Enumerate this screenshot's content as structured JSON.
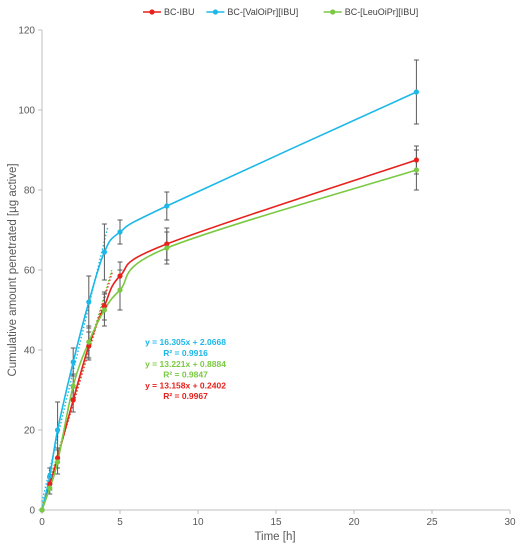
{
  "chart_data": {
    "type": "line",
    "title": "",
    "xlabel": "Time [h]",
    "ylabel": "Cumulative amount penetrated [µg active]",
    "xlim": [
      0,
      30
    ],
    "ylim": [
      0,
      120
    ],
    "xticks": [
      0,
      5,
      10,
      15,
      20,
      25,
      30
    ],
    "yticks": [
      0,
      20,
      40,
      60,
      80,
      100,
      120
    ],
    "grid": false,
    "legend_position": "top",
    "series": [
      {
        "name": "BC-IBU",
        "color": "#e8201c",
        "x": [
          0,
          0.5,
          1,
          2,
          3,
          4,
          5,
          8,
          24
        ],
        "y": [
          0,
          6.5,
          13,
          27.5,
          41,
          51,
          58.5,
          66.5,
          87.5
        ],
        "err": [
          0,
          1.5,
          2.5,
          3,
          3.5,
          3.5,
          3.5,
          4,
          3.5
        ]
      },
      {
        "name": "BC-[ValOiPr][IBU]",
        "color": "#1cb8e8",
        "x": [
          0,
          0.5,
          1,
          2,
          3,
          4,
          5,
          8,
          24
        ],
        "y": [
          0,
          8.5,
          20,
          37,
          52,
          64.5,
          69.5,
          76,
          104.5
        ],
        "err": [
          0,
          2,
          7,
          3.5,
          6.5,
          7,
          3,
          3.5,
          8
        ]
      },
      {
        "name": "BC-[LeuOiPr][IBU]",
        "color": "#7bc943",
        "x": [
          0,
          0.5,
          1,
          2,
          3,
          4,
          5,
          8,
          24
        ],
        "y": [
          0,
          5.5,
          12,
          31,
          42,
          50,
          55,
          65.5,
          85
        ],
        "err": [
          0,
          1.5,
          3,
          3,
          4,
          4,
          5,
          4,
          5
        ]
      }
    ],
    "trendlines": [
      {
        "series": "BC-IBU",
        "color": "#e8201c",
        "slope": 13.158,
        "intercept": 0.2402,
        "x_range": [
          0,
          4.5
        ]
      },
      {
        "series": "BC-[ValOiPr][IBU]",
        "color": "#1cb8e8",
        "slope": 16.305,
        "intercept": 2.0668,
        "x_range": [
          0,
          4.2
        ]
      },
      {
        "series": "BC-[LeuOiPr][IBU]",
        "color": "#7bc943",
        "slope": 13.221,
        "intercept": 0.8884,
        "x_range": [
          0,
          4.5
        ]
      }
    ],
    "annotations": [
      {
        "text": "y = 16.305x + 2.0668",
        "color": "#1cb8e8",
        "data_x": 9.2,
        "data_y": 41.2
      },
      {
        "text": "R² = 0.9916",
        "color": "#1cb8e8",
        "data_x": 9.2,
        "data_y": 38.5
      },
      {
        "text": "y = 13.221x + 0.8884",
        "color": "#7bc943",
        "data_x": 9.2,
        "data_y": 35.8
      },
      {
        "text": "R² = 0.9847",
        "color": "#7bc943",
        "data_x": 9.2,
        "data_y": 33.1
      },
      {
        "text": "y = 13.158x + 0.2402",
        "color": "#e8201c",
        "data_x": 9.2,
        "data_y": 30.4
      },
      {
        "text": "R² = 0.9967",
        "color": "#e8201c",
        "data_x": 9.2,
        "data_y": 27.7
      }
    ]
  }
}
